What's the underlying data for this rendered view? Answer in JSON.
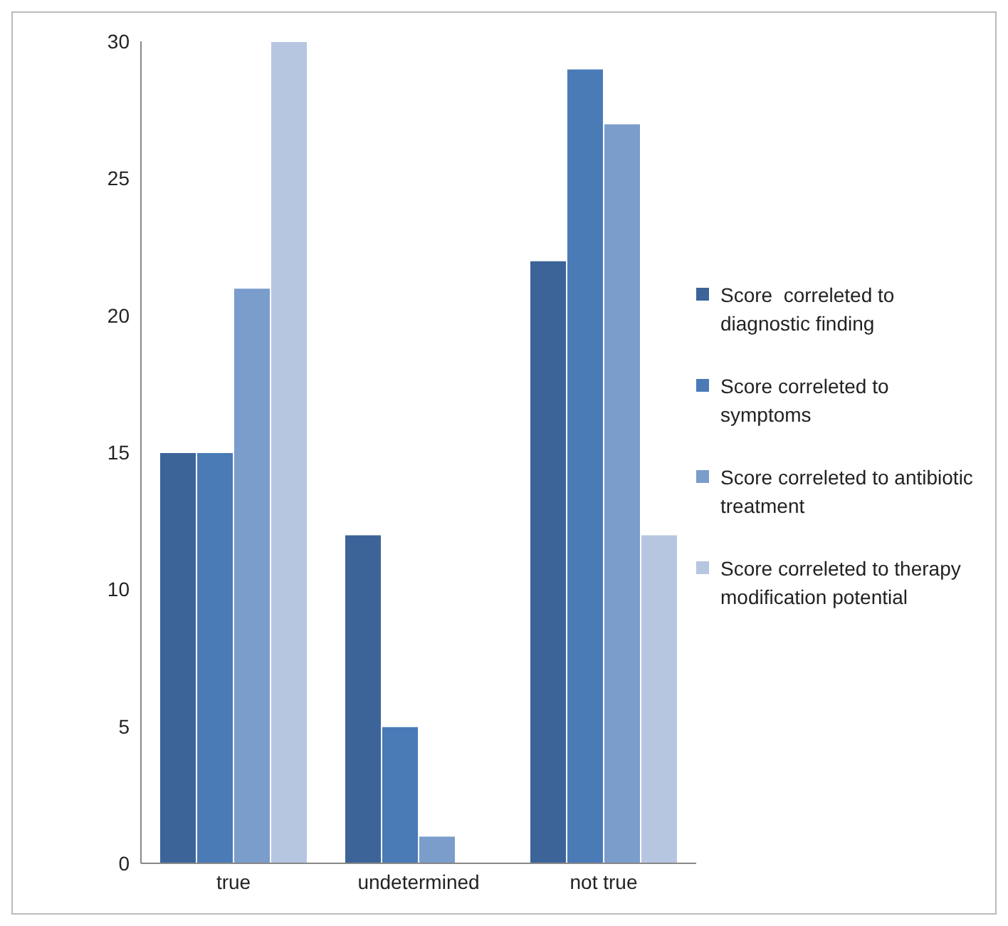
{
  "chart_data": {
    "type": "bar",
    "categories": [
      "true",
      "undetermined",
      "not true"
    ],
    "series": [
      {
        "name": "Score  correleted to diagnostic finding",
        "color": "#3d6499",
        "values": [
          15,
          12,
          22
        ]
      },
      {
        "name": "Score correleted to symptoms",
        "color": "#4a7bb7",
        "values": [
          15,
          5,
          29
        ]
      },
      {
        "name": "Score correleted to antibiotic treatment",
        "color": "#7b9dcc",
        "values": [
          21,
          1,
          27
        ]
      },
      {
        "name": "Score correleted to therapy modification potential",
        "color": "#b6c6e0",
        "values": [
          30,
          0,
          12
        ]
      }
    ],
    "ylim": [
      0,
      30
    ],
    "yticks": [
      0,
      5,
      10,
      15,
      20,
      25,
      30
    ],
    "grid": false,
    "legend": "right"
  }
}
